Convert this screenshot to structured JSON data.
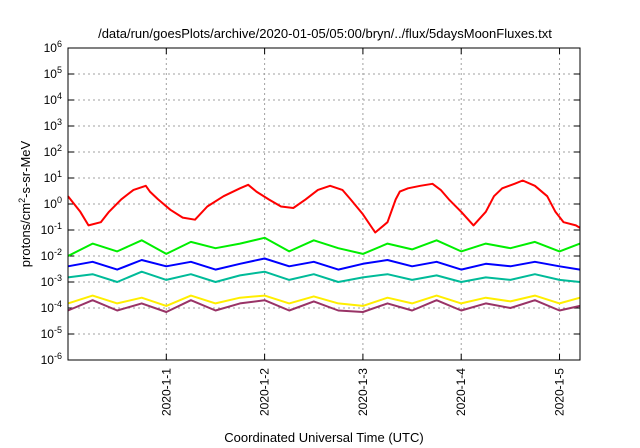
{
  "chart_data": {
    "type": "line",
    "title": "/data/run/goesPlots/archive/2020-01-05/05:00/bryn/../flux/5daysMoonFluxes.txt",
    "xlabel": "Coordinated Universal Time (UTC)",
    "ylabel_parts": {
      "pre": "protons/cm",
      "sup": "2",
      "post": "-s-sr-MeV"
    },
    "y_scale": "log",
    "ylim": [
      1e-06,
      1000000.0
    ],
    "y_ticks": [
      {
        "value": 1e-06,
        "base": "10",
        "exp": "-6"
      },
      {
        "value": 1e-05,
        "base": "10",
        "exp": "-5"
      },
      {
        "value": 0.0001,
        "base": "10",
        "exp": "-4"
      },
      {
        "value": 0.001,
        "base": "10",
        "exp": "-3"
      },
      {
        "value": 0.01,
        "base": "10",
        "exp": "-2"
      },
      {
        "value": 0.1,
        "base": "10",
        "exp": "-1"
      },
      {
        "value": 1,
        "base": "10",
        "exp": "0"
      },
      {
        "value": 10,
        "base": "10",
        "exp": "1"
      },
      {
        "value": 100,
        "base": "10",
        "exp": "2"
      },
      {
        "value": 1000,
        "base": "10",
        "exp": "3"
      },
      {
        "value": 10000,
        "base": "10",
        "exp": "4"
      },
      {
        "value": 100000,
        "base": "10",
        "exp": "5"
      },
      {
        "value": 1000000,
        "base": "10",
        "exp": "6"
      }
    ],
    "x_range": [
      "2019-12-31T00:00",
      "2020-01-05T05:00"
    ],
    "x_ticks": [
      "2020-1-1",
      "2020-1-2",
      "2020-1-3",
      "2020-1-4",
      "2020-1-5"
    ],
    "grid": true,
    "series": [
      {
        "color": "#ff0000",
        "x": [
          "2019-12-31T00:00",
          "2019-12-31T03:00",
          "2019-12-31T05:00",
          "2019-12-31T08:00",
          "2019-12-31T10:00",
          "2019-12-31T13:00",
          "2019-12-31T16:00",
          "2019-12-31T19:00",
          "2019-12-31T20:00",
          "2019-12-31T22:00",
          "2020-01-01T01:00",
          "2020-01-01T04:00",
          "2020-01-01T07:00",
          "2020-01-01T10:00",
          "2020-01-01T14:00",
          "2020-01-01T18:00",
          "2020-01-01T20:00",
          "2020-01-01T22:00",
          "2020-01-02T01:00",
          "2020-01-02T04:00",
          "2020-01-02T07:00",
          "2020-01-02T10:00",
          "2020-01-02T13:00",
          "2020-01-02T16:00",
          "2020-01-02T19:00",
          "2020-01-02T21:00",
          "2020-01-03T00:00",
          "2020-01-03T03:00",
          "2020-01-03T06:00",
          "2020-01-03T08:00",
          "2020-01-03T09:00",
          "2020-01-03T11:00",
          "2020-01-03T14:00",
          "2020-01-03T17:00",
          "2020-01-03T19:00",
          "2020-01-03T21:00",
          "2020-01-04T00:00",
          "2020-01-04T03:00",
          "2020-01-04T06:00",
          "2020-01-04T08:00",
          "2020-01-04T10:00",
          "2020-01-04T13:00",
          "2020-01-04T15:00",
          "2020-01-04T18:00",
          "2020-01-04T21:00",
          "2020-01-04T23:00",
          "2020-01-05T01:00",
          "2020-01-05T04:00",
          "2020-01-05T05:00"
        ],
        "values": [
          2,
          0.5,
          0.15,
          0.2,
          0.5,
          1.5,
          3.5,
          5,
          3,
          1.5,
          0.6,
          0.3,
          0.25,
          0.8,
          2,
          4,
          5.5,
          3,
          1.5,
          0.8,
          0.7,
          1.5,
          3.5,
          5,
          3.5,
          1.5,
          0.4,
          0.08,
          0.2,
          1.5,
          3,
          4,
          5,
          6,
          3.5,
          1.5,
          0.5,
          0.15,
          0.5,
          2,
          4,
          6,
          8,
          5,
          2,
          0.5,
          0.2,
          0.15,
          0.12
        ]
      },
      {
        "color": "#00ee00",
        "x": [
          "2019-12-31T00:00",
          "2019-12-31T06:00",
          "2019-12-31T12:00",
          "2019-12-31T18:00",
          "2020-01-01T00:00",
          "2020-01-01T06:00",
          "2020-01-01T12:00",
          "2020-01-01T18:00",
          "2020-01-02T00:00",
          "2020-01-02T06:00",
          "2020-01-02T12:00",
          "2020-01-02T18:00",
          "2020-01-03T00:00",
          "2020-01-03T06:00",
          "2020-01-03T12:00",
          "2020-01-03T18:00",
          "2020-01-04T00:00",
          "2020-01-04T06:00",
          "2020-01-04T12:00",
          "2020-01-04T18:00",
          "2020-01-05T00:00",
          "2020-01-05T05:00"
        ],
        "values": [
          0.01,
          0.03,
          0.015,
          0.04,
          0.012,
          0.035,
          0.02,
          0.03,
          0.05,
          0.015,
          0.04,
          0.02,
          0.012,
          0.03,
          0.018,
          0.04,
          0.015,
          0.03,
          0.02,
          0.035,
          0.015,
          0.03
        ]
      },
      {
        "color": "#0000ff",
        "x": [
          "2019-12-31T00:00",
          "2019-12-31T06:00",
          "2019-12-31T12:00",
          "2019-12-31T18:00",
          "2020-01-01T00:00",
          "2020-01-01T06:00",
          "2020-01-01T12:00",
          "2020-01-01T18:00",
          "2020-01-02T00:00",
          "2020-01-02T06:00",
          "2020-01-02T12:00",
          "2020-01-02T18:00",
          "2020-01-03T00:00",
          "2020-01-03T06:00",
          "2020-01-03T12:00",
          "2020-01-03T18:00",
          "2020-01-04T00:00",
          "2020-01-04T06:00",
          "2020-01-04T12:00",
          "2020-01-04T18:00",
          "2020-01-05T00:00",
          "2020-01-05T05:00"
        ],
        "values": [
          0.004,
          0.006,
          0.003,
          0.007,
          0.004,
          0.006,
          0.003,
          0.005,
          0.008,
          0.004,
          0.006,
          0.003,
          0.005,
          0.007,
          0.004,
          0.006,
          0.003,
          0.005,
          0.004,
          0.006,
          0.004,
          0.003
        ]
      },
      {
        "color": "#00bb99",
        "x": [
          "2019-12-31T00:00",
          "2019-12-31T06:00",
          "2019-12-31T12:00",
          "2019-12-31T18:00",
          "2020-01-01T00:00",
          "2020-01-01T06:00",
          "2020-01-01T12:00",
          "2020-01-01T18:00",
          "2020-01-02T00:00",
          "2020-01-02T06:00",
          "2020-01-02T12:00",
          "2020-01-02T18:00",
          "2020-01-03T00:00",
          "2020-01-03T06:00",
          "2020-01-03T12:00",
          "2020-01-03T18:00",
          "2020-01-04T00:00",
          "2020-01-04T06:00",
          "2020-01-04T12:00",
          "2020-01-04T18:00",
          "2020-01-05T00:00",
          "2020-01-05T05:00"
        ],
        "values": [
          0.0015,
          0.002,
          0.001,
          0.0025,
          0.0012,
          0.002,
          0.001,
          0.0018,
          0.0025,
          0.0012,
          0.002,
          0.001,
          0.0015,
          0.002,
          0.0012,
          0.0018,
          0.001,
          0.0015,
          0.0012,
          0.002,
          0.0012,
          0.001
        ]
      },
      {
        "color": "#ffee00",
        "x": [
          "2019-12-31T00:00",
          "2019-12-31T06:00",
          "2019-12-31T12:00",
          "2019-12-31T18:00",
          "2020-01-01T00:00",
          "2020-01-01T06:00",
          "2020-01-01T12:00",
          "2020-01-01T18:00",
          "2020-01-02T00:00",
          "2020-01-02T06:00",
          "2020-01-02T12:00",
          "2020-01-02T18:00",
          "2020-01-03T00:00",
          "2020-01-03T06:00",
          "2020-01-03T12:00",
          "2020-01-03T18:00",
          "2020-01-04T00:00",
          "2020-01-04T06:00",
          "2020-01-04T12:00",
          "2020-01-04T18:00",
          "2020-01-05T00:00",
          "2020-01-05T05:00"
        ],
        "values": [
          0.00015,
          0.0003,
          0.00015,
          0.00025,
          0.00012,
          0.0003,
          0.00015,
          0.00025,
          0.0003,
          0.00015,
          0.00028,
          0.00015,
          0.00012,
          0.00025,
          0.00015,
          0.0003,
          0.00015,
          0.00025,
          0.00018,
          0.0003,
          0.00015,
          0.00025
        ]
      },
      {
        "color": "#993366",
        "x": [
          "2019-12-31T00:00",
          "2019-12-31T06:00",
          "2019-12-31T12:00",
          "2019-12-31T18:00",
          "2020-01-01T00:00",
          "2020-01-01T06:00",
          "2020-01-01T12:00",
          "2020-01-01T18:00",
          "2020-01-02T00:00",
          "2020-01-02T06:00",
          "2020-01-02T12:00",
          "2020-01-02T18:00",
          "2020-01-03T00:00",
          "2020-01-03T06:00",
          "2020-01-03T12:00",
          "2020-01-03T18:00",
          "2020-01-04T00:00",
          "2020-01-04T06:00",
          "2020-01-04T12:00",
          "2020-01-04T18:00",
          "2020-01-05T00:00",
          "2020-01-05T05:00"
        ],
        "values": [
          8e-05,
          0.0002,
          8e-05,
          0.00015,
          7e-05,
          0.0002,
          8e-05,
          0.00015,
          0.0002,
          8e-05,
          0.00018,
          8e-05,
          7e-05,
          0.00015,
          8e-05,
          0.0002,
          8e-05,
          0.00015,
          0.0001,
          0.0002,
          8e-05,
          0.00012
        ]
      }
    ]
  }
}
